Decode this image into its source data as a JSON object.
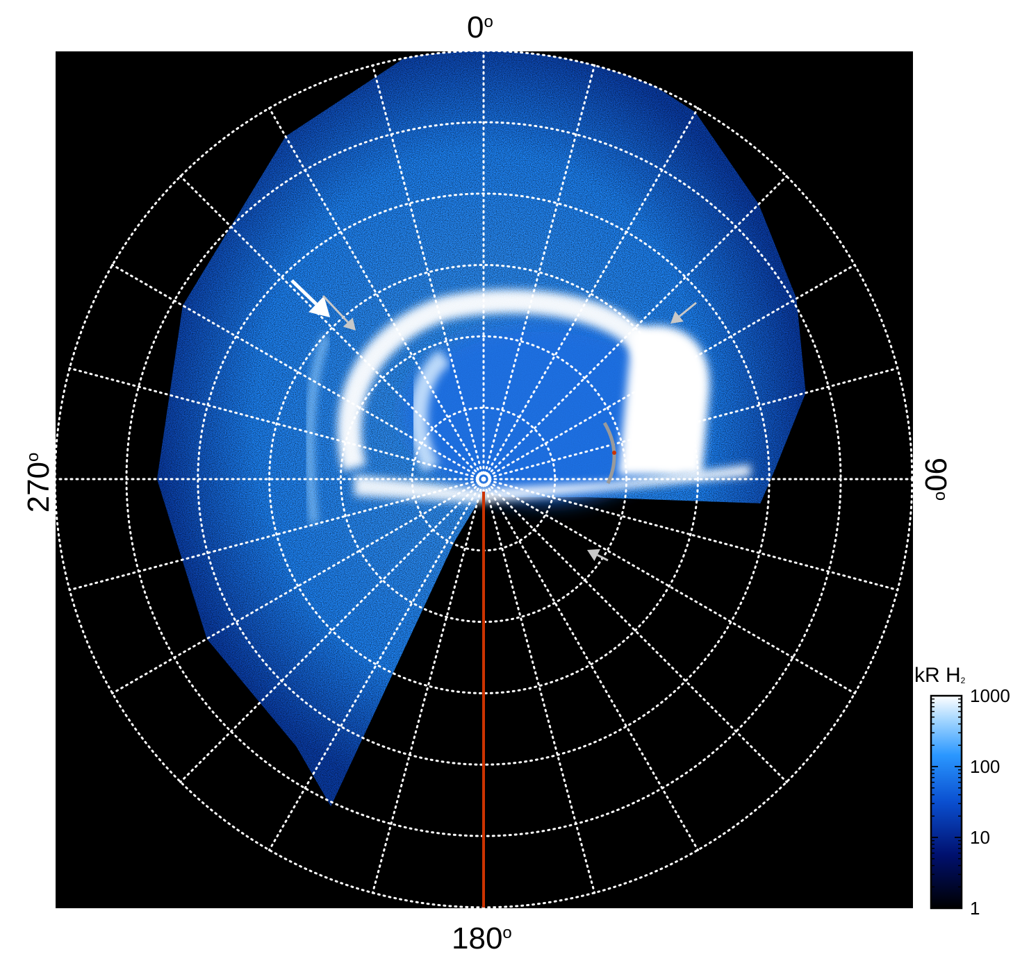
{
  "chart_data": {
    "type": "heatmap",
    "projection": "polar",
    "angle_labels": {
      "top": "0",
      "right": "90",
      "bottom": "180",
      "left": "270",
      "degree_symbol": "o"
    },
    "grid": true,
    "grid_style": "dotted white",
    "colorbar": {
      "title_main": "kR H",
      "title_sub": "2",
      "scale": "log",
      "range": [
        1,
        1000
      ],
      "ticks": [
        {
          "value": 1,
          "label": "1"
        },
        {
          "value": 10,
          "label": "10"
        },
        {
          "value": 100,
          "label": "100"
        },
        {
          "value": 1000,
          "label": "1000"
        }
      ]
    },
    "meridian_line_color": "#cc3300",
    "colors": {
      "background": "#000000",
      "low": "#000000",
      "mid": "#1e88ff",
      "high": "#ffffff",
      "grid": "#ffffff",
      "arrow_white": "#ffffff",
      "arrow_gray": "#c8c8c8"
    }
  }
}
